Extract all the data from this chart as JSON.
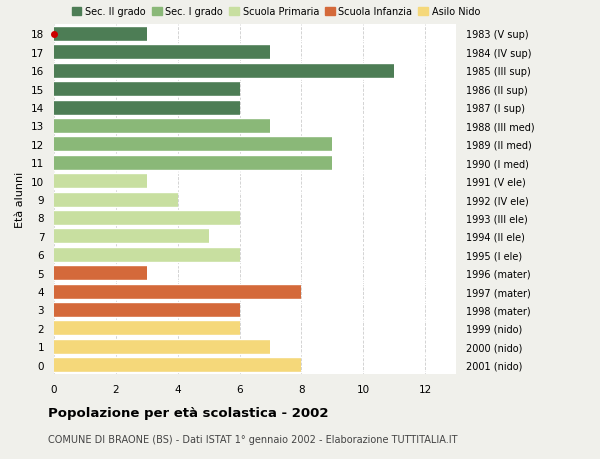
{
  "ages": [
    18,
    17,
    16,
    15,
    14,
    13,
    12,
    11,
    10,
    9,
    8,
    7,
    6,
    5,
    4,
    3,
    2,
    1,
    0
  ],
  "years": [
    "1983 (V sup)",
    "1984 (IV sup)",
    "1985 (III sup)",
    "1986 (II sup)",
    "1987 (I sup)",
    "1988 (III med)",
    "1989 (II med)",
    "1990 (I med)",
    "1991 (V ele)",
    "1992 (IV ele)",
    "1993 (III ele)",
    "1994 (II ele)",
    "1995 (I ele)",
    "1996 (mater)",
    "1997 (mater)",
    "1998 (mater)",
    "1999 (nido)",
    "2000 (nido)",
    "2001 (nido)"
  ],
  "values": [
    3,
    7,
    11,
    6,
    6,
    7,
    9,
    9,
    3,
    4,
    6,
    5,
    6,
    3,
    8,
    6,
    6,
    7,
    8
  ],
  "categories": [
    "Sec. II grado",
    "Sec. II grado",
    "Sec. II grado",
    "Sec. II grado",
    "Sec. II grado",
    "Sec. I grado",
    "Sec. I grado",
    "Sec. I grado",
    "Scuola Primaria",
    "Scuola Primaria",
    "Scuola Primaria",
    "Scuola Primaria",
    "Scuola Primaria",
    "Scuola Infanzia",
    "Scuola Infanzia",
    "Scuola Infanzia",
    "Asilo Nido",
    "Asilo Nido",
    "Asilo Nido"
  ],
  "colors": {
    "Sec. II grado": "#4d7d55",
    "Sec. I grado": "#8ab878",
    "Scuola Primaria": "#c8dfa0",
    "Scuola Infanzia": "#d4693a",
    "Asilo Nido": "#f5d87a"
  },
  "title": "Popolazione per età scolastica - 2002",
  "subtitle": "COMUNE DI BRAONE (BS) - Dati ISTAT 1° gennaio 2002 - Elaborazione TUTTITALIA.IT",
  "ylabel": "Età alunni",
  "xlim": [
    0,
    13
  ],
  "xticks": [
    0,
    2,
    4,
    6,
    8,
    10,
    12
  ],
  "background_color": "#f0f0eb",
  "plot_background": "#ffffff",
  "dot_color": "#cc0000",
  "bar_height": 0.82,
  "legend_labels": [
    "Sec. II grado",
    "Sec. I grado",
    "Scuola Primaria",
    "Scuola Infanzia",
    "Asilo Nido"
  ]
}
